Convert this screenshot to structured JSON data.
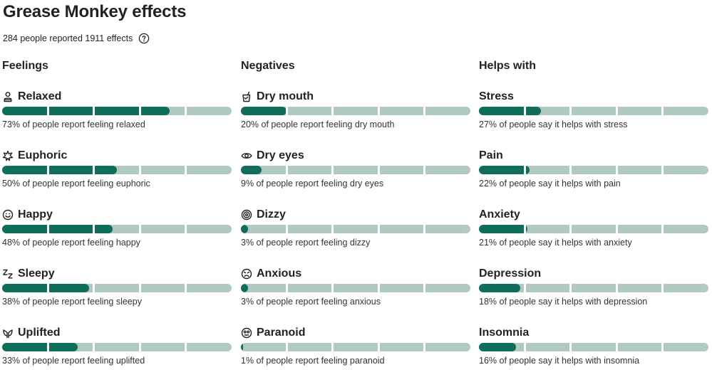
{
  "page": {
    "title": "Grease Monkey effects",
    "summary": "284 people reported 1911 effects",
    "help_icon": "question-circle-icon"
  },
  "columns": [
    {
      "title": "Feelings",
      "items": [
        {
          "name": "Relaxed",
          "icon": "person-icon",
          "percent": 73,
          "caption": "73% of people report feeling relaxed"
        },
        {
          "name": "Euphoric",
          "icon": "sparkle-icon",
          "percent": 50,
          "caption": "50% of people report feeling euphoric"
        },
        {
          "name": "Happy",
          "icon": "smile-icon",
          "percent": 48,
          "caption": "48% of people report feeling happy"
        },
        {
          "name": "Sleepy",
          "icon": "sleep-zz-icon",
          "percent": 38,
          "caption": "38% of people report feeling sleepy"
        },
        {
          "name": "Uplifted",
          "icon": "leaf-hands-icon",
          "percent": 33,
          "caption": "33% of people report feeling uplifted"
        }
      ]
    },
    {
      "title": "Negatives",
      "items": [
        {
          "name": "Dry mouth",
          "icon": "cup-icon",
          "percent": 20,
          "caption": "20% of people report feeling dry mouth"
        },
        {
          "name": "Dry eyes",
          "icon": "eye-icon",
          "percent": 9,
          "caption": "9% of people report feeling dry eyes"
        },
        {
          "name": "Dizzy",
          "icon": "spiral-icon",
          "percent": 3,
          "caption": "3% of people report feeling dizzy"
        },
        {
          "name": "Anxious",
          "icon": "anxious-face-icon",
          "percent": 3,
          "caption": "3% of people report feeling anxious"
        },
        {
          "name": "Paranoid",
          "icon": "paranoid-face-icon",
          "percent": 1,
          "caption": "1% of people report feeling paranoid"
        }
      ]
    },
    {
      "title": "Helps with",
      "items": [
        {
          "name": "Stress",
          "percent": 27,
          "caption": "27% of people say it helps with stress"
        },
        {
          "name": "Pain",
          "percent": 22,
          "caption": "22% of people say it helps with pain"
        },
        {
          "name": "Anxiety",
          "percent": 21,
          "caption": "21% of people say it helps with anxiety"
        },
        {
          "name": "Depression",
          "percent": 18,
          "caption": "18% of people say it helps with depression"
        },
        {
          "name": "Insomnia",
          "percent": 16,
          "caption": "16% of people say it helps with insomnia"
        }
      ]
    }
  ],
  "colors": {
    "fill": "#0f6e5a",
    "track": "#b0cac2"
  }
}
